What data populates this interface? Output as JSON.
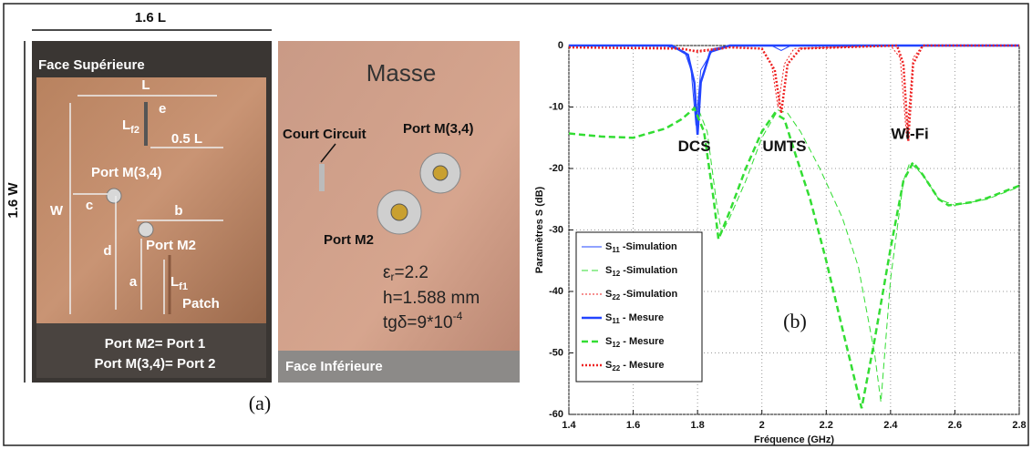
{
  "panel_a": {
    "label": "(a)",
    "width_label": "1.6 L",
    "height_label": "1.6 W",
    "top_face": {
      "title": "Face Supérieure",
      "l": "L",
      "e": "e",
      "lf2": {
        "base": "L",
        "sub": "f2"
      },
      "half_l": "0.5 L",
      "port34": "Port M(3,4)",
      "c": "c",
      "w": "W",
      "b": "b",
      "d": "d",
      "port2": "Port M2",
      "a": "a",
      "lf1": {
        "base": "L",
        "sub": "f1"
      },
      "patch": "Patch",
      "note1": "Port M2= Port 1",
      "note2": "Port M(3,4)= Port 2"
    },
    "bottom_face": {
      "title": "Masse",
      "short": "Court Circuit",
      "port34": "Port M(3,4)",
      "port2": "Port M2",
      "permittivity": {
        "symbol": "ε",
        "sub": "r",
        "value": "=2.2"
      },
      "thickness": "h=1.588 mm",
      "loss_tangent": {
        "text": "tgδ=9*10",
        "sup": "-4"
      },
      "face": "Face Inférieure"
    }
  },
  "chart_data": {
    "type": "line",
    "panel_label": "(b)",
    "xlabel": "Fréquence (GHz)",
    "ylabel": "Paramètres S (dB)",
    "annotations": [
      "DCS",
      "UMTS",
      "Wi-Fi"
    ],
    "xlim": [
      1.4,
      2.8
    ],
    "ylim": [
      -60,
      0
    ],
    "xticks": [
      1.4,
      1.6,
      1.8,
      2,
      2.2,
      2.4,
      2.6,
      2.8
    ],
    "yticks": [
      0,
      -10,
      -20,
      -30,
      -40,
      -50,
      -60
    ],
    "grid": true,
    "legend": "lower left",
    "series": [
      {
        "name": "S11 -Simulation",
        "color": "#2244ff",
        "linestyle": "solid",
        "linewidth": 1,
        "x": [
          1.4,
          1.7,
          1.76,
          1.78,
          1.795,
          1.81,
          1.85,
          1.9,
          2.03,
          2.06,
          2.09,
          2.8
        ],
        "values": [
          0,
          0,
          -1,
          -4,
          -13,
          -4,
          -0.5,
          0,
          0,
          -0.8,
          0,
          0
        ]
      },
      {
        "name": "S12 -Simulation",
        "color": "#33dd33",
        "linestyle": "dashed",
        "linewidth": 1,
        "x": [
          1.4,
          1.5,
          1.6,
          1.7,
          1.75,
          1.8,
          1.83,
          1.86,
          1.875,
          1.9,
          1.95,
          2.0,
          2.05,
          2.08,
          2.12,
          2.18,
          2.25,
          2.3,
          2.35,
          2.37,
          2.4,
          2.44,
          2.46,
          2.5,
          2.55,
          2.6,
          2.7,
          2.8
        ],
        "values": [
          -14.3,
          -14.8,
          -15,
          -13.5,
          -12,
          -10,
          -14,
          -26,
          -30.5,
          -28,
          -22,
          -15,
          -10.5,
          -11,
          -14,
          -20,
          -28,
          -36,
          -50,
          -58,
          -38,
          -22,
          -19,
          -21,
          -25,
          -26,
          -25,
          -23
        ]
      },
      {
        "name": "S22 -Simulation",
        "color": "#ee2222",
        "linestyle": "dotted",
        "linewidth": 1,
        "x": [
          1.4,
          1.7,
          1.8,
          1.9,
          2.0,
          2.03,
          2.05,
          2.07,
          2.1,
          2.4,
          2.43,
          2.45,
          2.47,
          2.5,
          2.8
        ],
        "values": [
          -0.3,
          -0.3,
          -0.8,
          -0.2,
          -0.5,
          -3,
          -10,
          -3,
          -0.5,
          0,
          -2,
          -15,
          -2,
          0,
          0
        ]
      },
      {
        "name": "S11 - Mesure",
        "color": "#2244ff",
        "linestyle": "solid",
        "linewidth": 2.5,
        "x": [
          1.4,
          1.72,
          1.77,
          1.79,
          1.8,
          1.81,
          1.84,
          1.9,
          2.8
        ],
        "values": [
          0,
          0,
          -1.5,
          -6,
          -14.5,
          -6,
          -1,
          0,
          0
        ]
      },
      {
        "name": "S12 - Mesure",
        "color": "#33dd33",
        "linestyle": "dashed",
        "linewidth": 2.5,
        "x": [
          1.4,
          1.5,
          1.6,
          1.7,
          1.75,
          1.79,
          1.82,
          1.85,
          1.865,
          1.9,
          1.95,
          2.0,
          2.04,
          2.07,
          2.1,
          2.15,
          2.2,
          2.25,
          2.31,
          2.35,
          2.4,
          2.44,
          2.47,
          2.5,
          2.55,
          2.58,
          2.65,
          2.7,
          2.8
        ],
        "values": [
          -14.3,
          -14.8,
          -15,
          -13.5,
          -12,
          -10.2,
          -14,
          -25,
          -31.5,
          -27,
          -20,
          -14,
          -11,
          -12,
          -17,
          -25,
          -35,
          -46,
          -59,
          -48,
          -33,
          -22,
          -19,
          -21,
          -25,
          -26,
          -25.5,
          -24.8,
          -22.8
        ]
      },
      {
        "name": "S22 - Mesure",
        "color": "#ee2222",
        "linestyle": "dotted",
        "linewidth": 2.5,
        "x": [
          1.4,
          1.75,
          1.8,
          1.9,
          2.0,
          2.04,
          2.06,
          2.08,
          2.12,
          2.42,
          2.44,
          2.455,
          2.47,
          2.5,
          2.8
        ],
        "values": [
          -0.3,
          -0.5,
          -1,
          -0.3,
          -0.5,
          -4,
          -11,
          -3,
          -0.5,
          0,
          -3,
          -15.5,
          -3,
          0,
          0
        ]
      }
    ]
  }
}
